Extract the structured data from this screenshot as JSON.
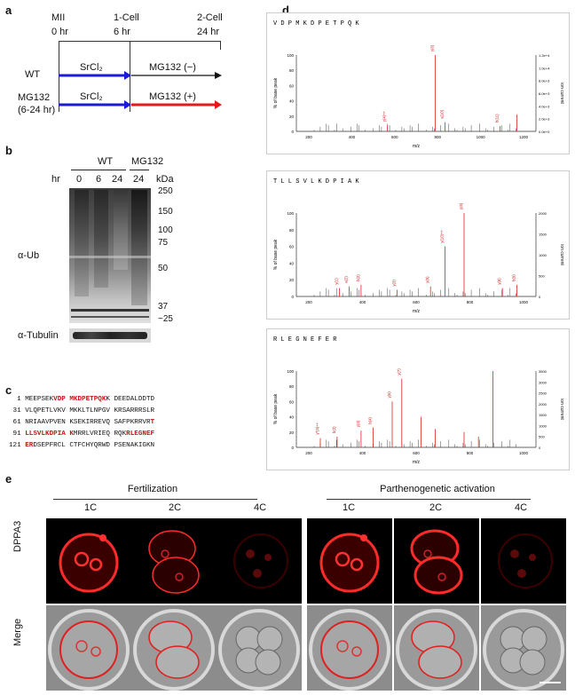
{
  "panels": {
    "a": "a",
    "b": "b",
    "c": "c",
    "d": "d",
    "e": "e"
  },
  "timeline": {
    "stages": [
      "MII",
      "1-Cell",
      "2-Cell"
    ],
    "times": [
      "0 hr",
      "6 hr",
      "24 hr"
    ],
    "rows": [
      {
        "label": "WT",
        "seg1": "SrCl₂",
        "seg2": "MG132 (−)"
      },
      {
        "label": "MG132",
        "sublabel": "(6-24 hr)",
        "seg1": "SrCl₂",
        "seg2": "MG132 (+)"
      }
    ],
    "colors": {
      "blue": "#1a1adb",
      "red": "#e81818",
      "black": "#111111"
    }
  },
  "blot": {
    "groups": [
      "WT",
      "MG132"
    ],
    "hr_label": "hr",
    "lanes": [
      "0",
      "6",
      "24",
      "24"
    ],
    "kda_label": "kDa",
    "markers": [
      "250",
      "150",
      "100",
      "75",
      "50",
      "37",
      "~25"
    ],
    "ub_label": "α-Ub",
    "tub_label": "α-Tubulin"
  },
  "sequence": {
    "lines": [
      {
        "n": "1",
        "parts": [
          [
            "MEEPSEK",
            ""
          ],
          [
            "VDP MKDPETPQK",
            "r"
          ],
          [
            "K DEEDALDDTD",
            ""
          ]
        ]
      },
      {
        "n": "31",
        "parts": [
          [
            "VLQPETLVKV MKKLTLNPGV KRSARRRSLR",
            ""
          ]
        ]
      },
      {
        "n": "61",
        "parts": [
          [
            "NRIAAVPVEN KSEKIRREVQ SAFPKRRVR",
            ""
          ],
          [
            "T",
            "r"
          ]
        ]
      },
      {
        "n": "91",
        "parts": [
          [
            "LLSVLKDPIA K",
            "r"
          ],
          [
            "MRRLVRIEQ RQK",
            ""
          ],
          [
            "RLEGNEF",
            "r"
          ]
        ]
      },
      {
        "n": "121",
        "parts": [
          [
            "ER",
            "r"
          ],
          [
            "DSEPFRCL CTFCHYQRWD PSENAKIGKN",
            ""
          ]
        ]
      }
    ]
  },
  "spectra": [
    {
      "peptide": "V D P M K D P E T P Q K",
      "ylabel": "% of base peak",
      "y2label": "ion current",
      "xlabel": "m/z",
      "yticks": [
        "100",
        "80",
        "60",
        "40",
        "20",
        "0"
      ],
      "xticks": [
        "200",
        "400",
        "600",
        "800",
        "1000",
        "1200"
      ],
      "y2ticks": [
        "1.2e+4",
        "1.0e+4",
        "8.0e+3",
        "6.0e+3",
        "4.0e+3",
        "2.0e+3",
        "0.0e+0"
      ],
      "ions": [
        "y(4)++",
        "y(6)",
        "a(10)",
        "b(11)"
      ]
    },
    {
      "peptide": "T L L S V L K D P I A K",
      "ylabel": "% of base peak",
      "y2label": "ion current",
      "xlabel": "m/z",
      "yticks": [
        "100",
        "80",
        "60",
        "40",
        "20",
        "0"
      ],
      "xticks": [
        "200",
        "400",
        "600",
        "800",
        "1000"
      ],
      "y2ticks": [
        "2000",
        "1500",
        "1000",
        "500",
        "0"
      ],
      "ions": [
        "y(1)",
        "a(2)",
        "b(2)",
        "y(3)",
        "y(5)",
        "y(10)++",
        "y(6)",
        "y(8)",
        "b(9)"
      ]
    },
    {
      "peptide": "R L E G N E F E R",
      "ylabel": "% of base peak",
      "y2label": "ion current",
      "xlabel": "m/z",
      "yticks": [
        "100",
        "80",
        "60",
        "40",
        "20",
        "0"
      ],
      "xticks": [
        "200",
        "400",
        "600",
        "800",
        "1000"
      ],
      "y2ticks": [
        "3500",
        "3000",
        "2500",
        "2000",
        "1500",
        "1000",
        "500",
        "0"
      ],
      "ions": [
        "y*(5)++",
        "b(2)",
        "y(3)",
        "b(4)",
        "y(6)",
        "y(7)"
      ]
    }
  ],
  "imaging": {
    "groups": [
      "Fertilization",
      "Parthenogenetic activation"
    ],
    "stages": [
      "1C",
      "2C",
      "4C",
      "1C",
      "2C",
      "4C"
    ],
    "rows": [
      "DPPA3",
      "Merge"
    ]
  }
}
